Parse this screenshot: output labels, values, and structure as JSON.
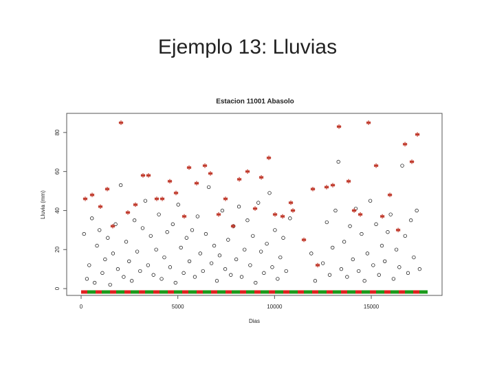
{
  "slide_title": "Ejemplo 13: Lluvias",
  "chart_data": {
    "type": "scatter",
    "title": "Estacion 11001 Abasolo",
    "x_label": "Dias",
    "y_label": "Lluvia (mm)",
    "xlim": [
      -746,
      18660
    ],
    "ylim": [
      -3.5,
      89.8
    ],
    "xticks": [
      0,
      5000,
      10000,
      15000
    ],
    "yticks": [
      0,
      20,
      40,
      60,
      80
    ],
    "series": [
      {
        "color": "#000000",
        "marker": "circle",
        "x": [
          150,
          300,
          420,
          560,
          700,
          820,
          950,
          1100,
          1240,
          1380,
          1500,
          1650,
          1780,
          1900,
          2050,
          2200,
          2330,
          2480,
          2620,
          2760,
          2900,
          3050,
          3180,
          3320,
          3460,
          3600,
          3740,
          3880,
          4020,
          4160,
          4300,
          4450,
          4600,
          4740,
          4880,
          5020,
          5160,
          5300,
          5450,
          5600,
          5740,
          5880,
          6020,
          6160,
          6300,
          6450,
          6600,
          6740,
          6880,
          7020,
          7160,
          7300,
          7450,
          7600,
          7740,
          7880,
          8020,
          8160,
          8300,
          8450,
          8600,
          8740,
          8880,
          9020,
          9160,
          9300,
          9450,
          9600,
          9740,
          9880,
          10020,
          10160,
          10300,
          10450,
          10600,
          10800,
          11900,
          12100,
          12500,
          12700,
          12850,
          13000,
          13150,
          13300,
          13450,
          13600,
          13750,
          13900,
          14050,
          14200,
          14350,
          14500,
          14650,
          14800,
          14950,
          15100,
          15250,
          15400,
          15550,
          15700,
          15850,
          16000,
          16150,
          16300,
          16450,
          16600,
          16750,
          16900,
          17050,
          17200,
          17350,
          17500
        ],
        "values": [
          28,
          5,
          12,
          36,
          3,
          22,
          30,
          8,
          15,
          26,
          2,
          18,
          33,
          10,
          53,
          6,
          24,
          14,
          4,
          35,
          19,
          9,
          31,
          45,
          12,
          27,
          7,
          20,
          38,
          5,
          16,
          29,
          11,
          33,
          3,
          43,
          21,
          8,
          26,
          14,
          30,
          6,
          37,
          18,
          9,
          28,
          52,
          13,
          22,
          4,
          17,
          40,
          10,
          25,
          7,
          32,
          15,
          42,
          6,
          20,
          35,
          12,
          27,
          3,
          44,
          19,
          8,
          23,
          49,
          11,
          30,
          5,
          16,
          26,
          9,
          36,
          18,
          4,
          13,
          34,
          7,
          21,
          40,
          65,
          10,
          24,
          6,
          32,
          15,
          41,
          9,
          28,
          4,
          18,
          45,
          12,
          33,
          7,
          22,
          14,
          29,
          38,
          5,
          20,
          11,
          63,
          27,
          8,
          35,
          16,
          40,
          10
        ]
      },
      {
        "color": "#c0392b",
        "marker": "star",
        "x": [
          213,
          569,
          995,
          1351,
          1635,
          2062,
          2417,
          2808,
          3199,
          3484,
          3910,
          4195,
          4586,
          4906,
          5332,
          5581,
          5972,
          6399,
          6683,
          7110,
          7465,
          7857,
          8177,
          8603,
          8994,
          9314,
          9705,
          10025,
          10416,
          10842,
          10949,
          11518,
          11980,
          12229,
          12691,
          13011,
          13331,
          13829,
          14113,
          14433,
          14860,
          15251,
          15571,
          15962,
          16389,
          16744,
          17099,
          17384
        ],
        "values": [
          46,
          48,
          42,
          51,
          32,
          85,
          39,
          43,
          58,
          58,
          46,
          46,
          55,
          49,
          37,
          62,
          54,
          63,
          59,
          38,
          46,
          32,
          56,
          60,
          41,
          57,
          67,
          38,
          37,
          44,
          40,
          25,
          51,
          12,
          52,
          53,
          83,
          55,
          40,
          38,
          85,
          63,
          37,
          48,
          30,
          74,
          65,
          79
        ]
      }
    ]
  }
}
